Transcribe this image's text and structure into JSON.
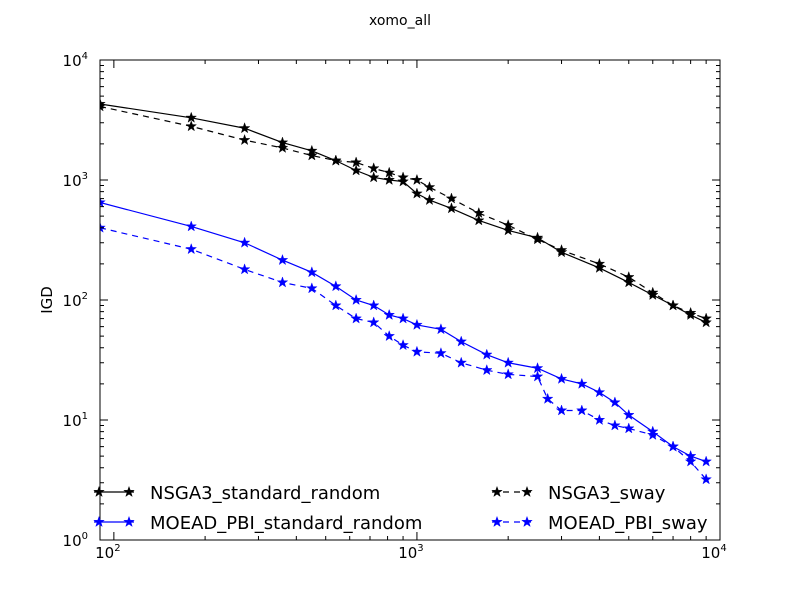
{
  "chart_data": {
    "type": "line",
    "title": "xomo_all",
    "xlabel": "",
    "ylabel": "IGD",
    "xscale": "log",
    "yscale": "log",
    "xlim": [
      90,
      10000
    ],
    "ylim": [
      1,
      10000
    ],
    "x_ticks": [
      {
        "base": "10",
        "exp": "2",
        "value": 100
      },
      {
        "base": "10",
        "exp": "3",
        "value": 1000
      },
      {
        "base": "10",
        "exp": "4",
        "value": 10000
      }
    ],
    "y_ticks": [
      {
        "base": "10",
        "exp": "0",
        "value": 1
      },
      {
        "base": "10",
        "exp": "1",
        "value": 10
      },
      {
        "base": "10",
        "exp": "2",
        "value": 100
      },
      {
        "base": "10",
        "exp": "3",
        "value": 1000
      },
      {
        "base": "10",
        "exp": "4",
        "value": 10000
      }
    ],
    "grid": false,
    "legend_position": "bottom",
    "series": [
      {
        "name": "NSGA3_standard_random",
        "color": "#000000",
        "dash": "solid",
        "marker": "star",
        "x": [
          90,
          180,
          270,
          360,
          450,
          540,
          630,
          720,
          810,
          900,
          1000,
          1100,
          1300,
          1600,
          2000,
          2500,
          3000,
          4000,
          5000,
          6000,
          7000,
          8000,
          9000
        ],
        "y": [
          4300,
          3300,
          2700,
          2050,
          1750,
          1450,
          1200,
          1050,
          1000,
          970,
          770,
          680,
          580,
          460,
          380,
          330,
          250,
          185,
          140,
          110,
          90,
          75,
          65
        ]
      },
      {
        "name": "NSGA3_sway",
        "color": "#000000",
        "dash": "dashed",
        "marker": "star",
        "x": [
          90,
          180,
          270,
          360,
          450,
          540,
          630,
          720,
          810,
          900,
          1000,
          1100,
          1300,
          1600,
          2000,
          2500,
          3000,
          4000,
          5000,
          6000,
          7000,
          8000,
          9000
        ],
        "y": [
          4100,
          2800,
          2150,
          1850,
          1600,
          1450,
          1400,
          1250,
          1150,
          1050,
          1000,
          870,
          700,
          530,
          420,
          320,
          260,
          200,
          155,
          115,
          90,
          78,
          70
        ]
      },
      {
        "name": "MOEAD_PBI_standard_random",
        "color": "#0000ff",
        "dash": "solid",
        "marker": "star",
        "x": [
          90,
          180,
          270,
          360,
          450,
          540,
          630,
          720,
          810,
          900,
          1000,
          1200,
          1400,
          1700,
          2000,
          2500,
          3000,
          3500,
          4000,
          4500,
          5000,
          6000,
          7000,
          8000,
          9000
        ],
        "y": [
          650,
          410,
          300,
          215,
          170,
          130,
          100,
          90,
          75,
          70,
          62,
          57,
          45,
          35,
          30,
          27,
          22,
          20,
          17,
          14,
          11,
          8,
          6,
          5,
          4.5
        ]
      },
      {
        "name": "MOEAD_PBI_sway",
        "color": "#0000ff",
        "dash": "dashed",
        "marker": "star",
        "x": [
          90,
          180,
          270,
          360,
          450,
          540,
          630,
          720,
          810,
          900,
          1000,
          1200,
          1400,
          1700,
          2000,
          2500,
          2700,
          3000,
          3500,
          4000,
          4500,
          5000,
          6000,
          7000,
          8000,
          9000
        ],
        "y": [
          400,
          265,
          180,
          140,
          125,
          90,
          70,
          65,
          50,
          42,
          37,
          36,
          30,
          26,
          24,
          23,
          15,
          12,
          12,
          10,
          9,
          8.5,
          7.5,
          6,
          4.5,
          3.2
        ]
      }
    ]
  }
}
